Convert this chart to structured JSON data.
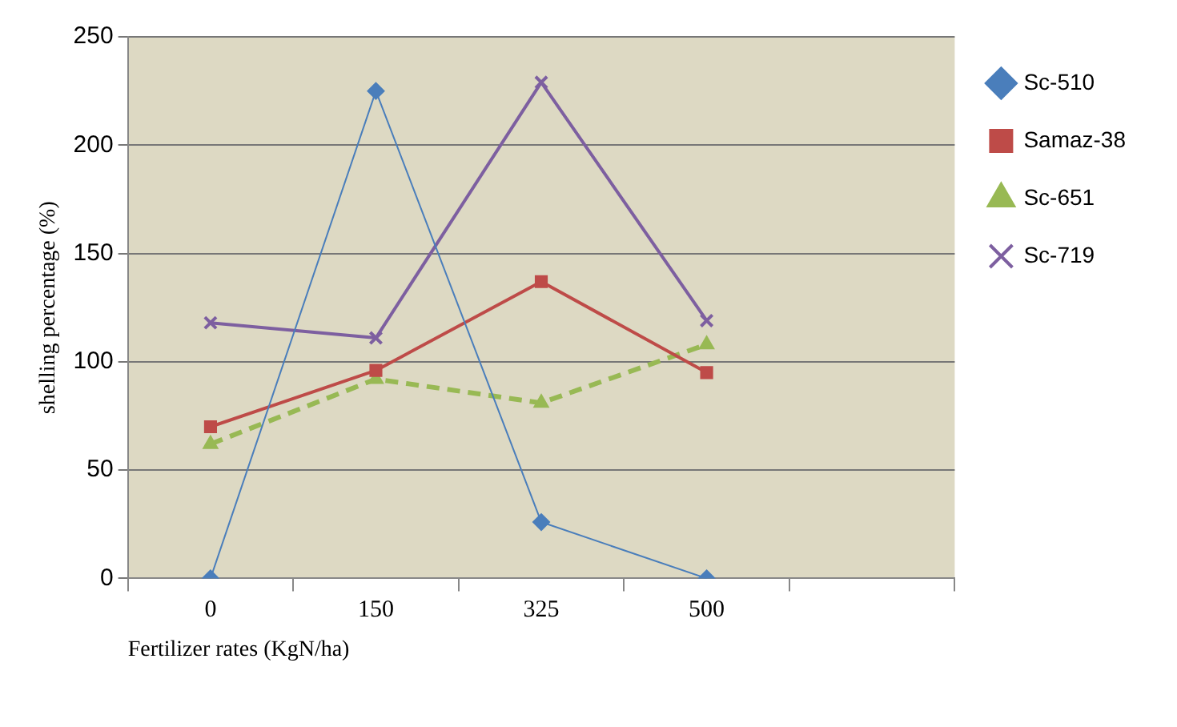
{
  "chart_data": {
    "type": "line",
    "xlabel": "Fertilizer rates (KgN/ha)",
    "ylabel": "shelling percentage (%)",
    "categories": [
      "0",
      "150",
      "325",
      "500",
      null
    ],
    "series": [
      {
        "name": "Sc-510",
        "color": "#4a7ebb",
        "marker": "diamond",
        "line_style": "solid",
        "values": [
          0,
          225,
          26,
          0,
          null
        ]
      },
      {
        "name": "Samaz-38",
        "color": "#be4b48",
        "marker": "square",
        "line_style": "solid",
        "values": [
          70,
          96,
          137,
          95,
          null
        ]
      },
      {
        "name": "Sc-651",
        "color": "#98b954",
        "marker": "triangle",
        "line_style": "dashed",
        "values": [
          62,
          92,
          81,
          108,
          null
        ]
      },
      {
        "name": "Sc-719",
        "color": "#7d5fa0",
        "marker": "cross",
        "line_style": "solid",
        "values": [
          118,
          111,
          229,
          119,
          null
        ]
      }
    ],
    "ylim": [
      0,
      250
    ],
    "yticks": [
      0,
      50,
      100,
      150,
      200,
      250
    ],
    "grid": "y",
    "legend": "right"
  }
}
